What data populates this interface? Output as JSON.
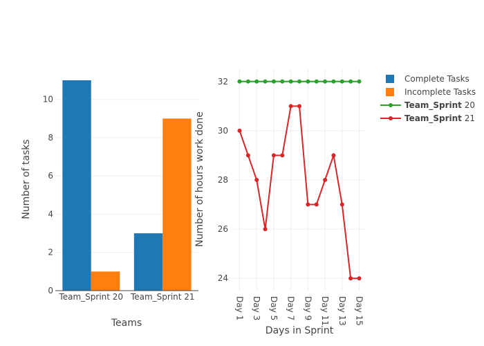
{
  "colors": {
    "complete": "#1f77b4",
    "incomplete": "#ff7f0e",
    "sprint20": "#2ca02c",
    "sprint21": "#d62728",
    "axis": "#444444",
    "grid": "#eeeeee"
  },
  "legend": {
    "items": [
      {
        "label": "Complete Tasks",
        "bold": "",
        "rest": "Complete Tasks",
        "kind": "bar",
        "color": "#1f77b4"
      },
      {
        "label": "Incomplete Tasks",
        "bold": "",
        "rest": "Incomplete Tasks",
        "kind": "bar",
        "color": "#ff7f0e"
      },
      {
        "label": "Team_Sprint 20",
        "bold": "Team_Sprint",
        "rest": " 20",
        "kind": "line",
        "color": "#2ca02c"
      },
      {
        "label": "Team_Sprint 21",
        "bold": "Team_Sprint",
        "rest": " 21",
        "kind": "line",
        "color": "#d62728"
      }
    ]
  },
  "chart_data": [
    {
      "type": "bar",
      "categories": [
        "Team_Sprint 20",
        "Team_Sprint 21"
      ],
      "series": [
        {
          "name": "Complete Tasks",
          "values": [
            11,
            3
          ],
          "color": "#1f77b4"
        },
        {
          "name": "Incomplete Tasks",
          "values": [
            1,
            9
          ],
          "color": "#ff7f0e"
        }
      ],
      "xlabel": "Teams",
      "ylabel": "Number of tasks",
      "ylim": [
        0,
        11.58
      ],
      "yticks": [
        0,
        2,
        4,
        6,
        8,
        10
      ],
      "grid": true
    },
    {
      "type": "line",
      "x": [
        "Day 1",
        "Day 2",
        "Day 3",
        "Day 4",
        "Day 5",
        "Day 6",
        "Day 7",
        "Day 8",
        "Day 9",
        "Day 10",
        "Day 11",
        "Day 12",
        "Day 13",
        "Day 14",
        "Day 15"
      ],
      "xtick_labels": [
        "Day 1",
        "Day 3",
        "Day 5",
        "Day 7",
        "Day 9",
        "Day 11",
        "Day 13",
        "Day 15"
      ],
      "series": [
        {
          "name": "Team_Sprint 20",
          "values": [
            32,
            32,
            32,
            32,
            32,
            32,
            32,
            32,
            32,
            32,
            32,
            32,
            32,
            32,
            32
          ],
          "color": "#2ca02c"
        },
        {
          "name": "Team_Sprint 21",
          "values": [
            30,
            29,
            28,
            26,
            29,
            29,
            31,
            31,
            27,
            27,
            28,
            29,
            27,
            24,
            24
          ],
          "color": "#d62728"
        }
      ],
      "xlabel": "Days in Sprint",
      "ylabel": "Number of hours work done",
      "ylim": [
        23.5,
        32.5
      ],
      "yticks": [
        24,
        26,
        28,
        30,
        32
      ],
      "grid": true,
      "legend_position": "top-right"
    }
  ]
}
